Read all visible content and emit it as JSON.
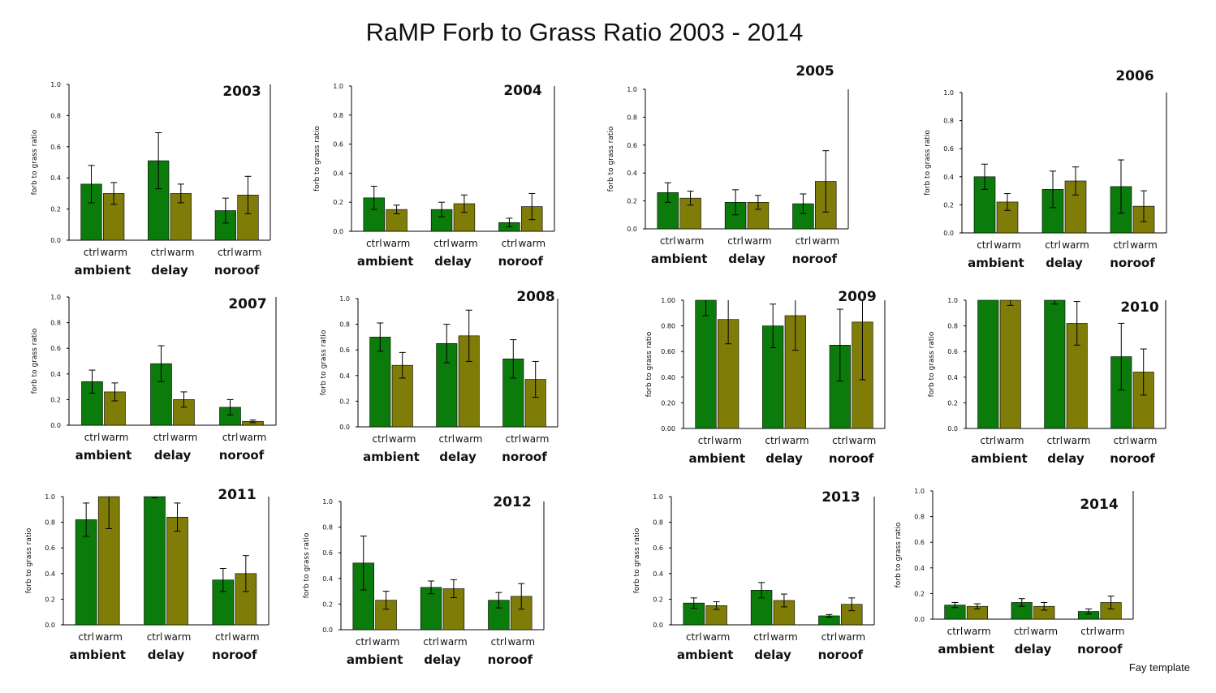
{
  "title": "RaMP Forb to Grass Ratio 2003 - 2014",
  "footer": "Fay template",
  "colors": {
    "ctrl": "#0b7b0b",
    "warm": "#7f7c08",
    "axis": "#000000"
  },
  "chart_data": [
    {
      "type": "bar",
      "title": "2003",
      "ylabel": "forb to grass ratio",
      "ylim": [
        0,
        1.0
      ],
      "yticks": [
        "0.0",
        "0.2",
        "0.4",
        "0.6",
        "0.8",
        "1.0"
      ],
      "groups": [
        "ambient",
        "delay",
        "noroof"
      ],
      "bar_labels": [
        "ctrl",
        "warm"
      ],
      "series": [
        {
          "name": "ctrl",
          "values": [
            0.36,
            0.51,
            0.19
          ],
          "errors": [
            0.12,
            0.18,
            0.08
          ]
        },
        {
          "name": "warm",
          "values": [
            0.3,
            0.3,
            0.29
          ],
          "errors": [
            0.07,
            0.06,
            0.12
          ]
        }
      ]
    },
    {
      "type": "bar",
      "title": "2004",
      "ylabel": "forb to grass ratio",
      "ylim": [
        0,
        1.0
      ],
      "yticks": [
        "0.0",
        "0.2",
        "0.4",
        "0.6",
        "0.8",
        "1.0"
      ],
      "groups": [
        "ambient",
        "delay",
        "noroof"
      ],
      "bar_labels": [
        "ctrl",
        "warm"
      ],
      "series": [
        {
          "name": "ctrl",
          "values": [
            0.23,
            0.15,
            0.06
          ],
          "errors": [
            0.08,
            0.05,
            0.03
          ]
        },
        {
          "name": "warm",
          "values": [
            0.15,
            0.19,
            0.17
          ],
          "errors": [
            0.03,
            0.06,
            0.09
          ]
        }
      ]
    },
    {
      "type": "bar",
      "title": "2005",
      "ylabel": "forb to grass ratio",
      "ylim": [
        0,
        1.0
      ],
      "yticks": [
        "0.0",
        "0.2",
        "0.4",
        "0.6",
        "0.8",
        "1.0"
      ],
      "groups": [
        "ambient",
        "delay",
        "noroof"
      ],
      "bar_labels": [
        "ctrl",
        "warm"
      ],
      "series": [
        {
          "name": "ctrl",
          "values": [
            0.26,
            0.19,
            0.18
          ],
          "errors": [
            0.07,
            0.09,
            0.07
          ]
        },
        {
          "name": "warm",
          "values": [
            0.22,
            0.19,
            0.34
          ],
          "errors": [
            0.05,
            0.05,
            0.22
          ]
        }
      ]
    },
    {
      "type": "bar",
      "title": "2006",
      "ylabel": "forb to grass ratio",
      "ylim": [
        0,
        1.0
      ],
      "yticks": [
        "0.0",
        "0.2",
        "0.4",
        "0.6",
        "0.8",
        "1.0"
      ],
      "groups": [
        "ambient",
        "delay",
        "noroof"
      ],
      "bar_labels": [
        "ctrl",
        "warm"
      ],
      "series": [
        {
          "name": "ctrl",
          "values": [
            0.4,
            0.31,
            0.33
          ],
          "errors": [
            0.09,
            0.13,
            0.19
          ]
        },
        {
          "name": "warm",
          "values": [
            0.22,
            0.37,
            0.19
          ],
          "errors": [
            0.06,
            0.1,
            0.11
          ]
        }
      ]
    },
    {
      "type": "bar",
      "title": "2007",
      "ylabel": "forb to grass ratio",
      "ylim": [
        0,
        1.0
      ],
      "yticks": [
        "0.0",
        "0.2",
        "0.4",
        "0.6",
        "0.8",
        "1.0"
      ],
      "groups": [
        "ambient",
        "delay",
        "noroof"
      ],
      "bar_labels": [
        "ctrl",
        "warm"
      ],
      "series": [
        {
          "name": "ctrl",
          "values": [
            0.34,
            0.48,
            0.14
          ],
          "errors": [
            0.09,
            0.14,
            0.06
          ]
        },
        {
          "name": "warm",
          "values": [
            0.26,
            0.2,
            0.03
          ],
          "errors": [
            0.07,
            0.06,
            0.01
          ]
        }
      ]
    },
    {
      "type": "bar",
      "title": "2008",
      "ylabel": "forb to grass ratio",
      "ylim": [
        0,
        1.0
      ],
      "yticks": [
        "0.0",
        "0.2",
        "0.4",
        "0.6",
        "0.8",
        "1.0"
      ],
      "groups": [
        "ambient",
        "delay",
        "noroof"
      ],
      "bar_labels": [
        "ctrl",
        "warm"
      ],
      "series": [
        {
          "name": "ctrl",
          "values": [
            0.7,
            0.65,
            0.53
          ],
          "errors": [
            0.11,
            0.15,
            0.15
          ]
        },
        {
          "name": "warm",
          "values": [
            0.48,
            0.71,
            0.37
          ],
          "errors": [
            0.1,
            0.2,
            0.14
          ]
        }
      ]
    },
    {
      "type": "bar",
      "title": "2009",
      "ylabel": "forb to grass ratio",
      "ylim": [
        0,
        1.0
      ],
      "yticks": [
        "0.00",
        "0.20",
        "0.40",
        "0.60",
        "0.80",
        "1.00"
      ],
      "groups": [
        "ambient",
        "delay",
        "noroof"
      ],
      "bar_labels": [
        "ctrl",
        "warm"
      ],
      "series": [
        {
          "name": "ctrl",
          "values": [
            1.0,
            0.8,
            0.65
          ],
          "errors": [
            0.12,
            0.17,
            0.28
          ]
        },
        {
          "name": "warm",
          "values": [
            0.85,
            0.88,
            0.83
          ],
          "errors": [
            0.19,
            0.27,
            0.45
          ]
        }
      ]
    },
    {
      "type": "bar",
      "title": "2010",
      "ylabel": "forb to grass ratio",
      "ylim": [
        0,
        1.0
      ],
      "yticks": [
        "0.0",
        "0.2",
        "0.4",
        "0.6",
        "0.8",
        "1.0"
      ],
      "groups": [
        "ambient",
        "delay",
        "noroof"
      ],
      "bar_labels": [
        "ctrl",
        "warm"
      ],
      "series": [
        {
          "name": "ctrl",
          "values": [
            1.0,
            1.0,
            0.56
          ],
          "errors": [
            0.0,
            0.03,
            0.26
          ]
        },
        {
          "name": "warm",
          "values": [
            1.0,
            0.82,
            0.44
          ],
          "errors": [
            0.04,
            0.17,
            0.18
          ]
        }
      ]
    },
    {
      "type": "bar",
      "title": "2011",
      "ylabel": "forb to grass ratio",
      "ylim": [
        0,
        1.0
      ],
      "yticks": [
        "0.0",
        "0.2",
        "0.4",
        "0.6",
        "0.8",
        "1.0"
      ],
      "groups": [
        "ambient",
        "delay",
        "noroof"
      ],
      "bar_labels": [
        "ctrl",
        "warm"
      ],
      "series": [
        {
          "name": "ctrl",
          "values": [
            0.82,
            1.0,
            0.35
          ],
          "errors": [
            0.13,
            0.01,
            0.09
          ]
        },
        {
          "name": "warm",
          "values": [
            1.0,
            0.84,
            0.4
          ],
          "errors": [
            0.25,
            0.11,
            0.14
          ]
        }
      ]
    },
    {
      "type": "bar",
      "title": "2012",
      "ylabel": "forb to grass ratio",
      "ylim": [
        0,
        1.0
      ],
      "yticks": [
        "0.0",
        "0.2",
        "0.4",
        "0.6",
        "0.8",
        "1.0"
      ],
      "groups": [
        "ambient",
        "delay",
        "noroof"
      ],
      "bar_labels": [
        "ctrl",
        "warm"
      ],
      "series": [
        {
          "name": "ctrl",
          "values": [
            0.52,
            0.33,
            0.23
          ],
          "errors": [
            0.21,
            0.05,
            0.06
          ]
        },
        {
          "name": "warm",
          "values": [
            0.23,
            0.32,
            0.26
          ],
          "errors": [
            0.07,
            0.07,
            0.1
          ]
        }
      ]
    },
    {
      "type": "bar",
      "title": "2013",
      "ylabel": "forb to grass ratio",
      "ylim": [
        0,
        1.0
      ],
      "yticks": [
        "0.0",
        "0.2",
        "0.4",
        "0.6",
        "0.8",
        "1.0"
      ],
      "groups": [
        "ambient",
        "delay",
        "noroof"
      ],
      "bar_labels": [
        "ctrl",
        "warm"
      ],
      "series": [
        {
          "name": "ctrl",
          "values": [
            0.17,
            0.27,
            0.07
          ],
          "errors": [
            0.04,
            0.06,
            0.01
          ]
        },
        {
          "name": "warm",
          "values": [
            0.15,
            0.19,
            0.16
          ],
          "errors": [
            0.03,
            0.05,
            0.05
          ]
        }
      ]
    },
    {
      "type": "bar",
      "title": "2014",
      "ylabel": "forb to grass ratio",
      "ylim": [
        0,
        1.0
      ],
      "yticks": [
        "0.0",
        "0.2",
        "0.4",
        "0.6",
        "0.8",
        "1.0"
      ],
      "groups": [
        "ambient",
        "delay",
        "noroof"
      ],
      "bar_labels": [
        "ctrl",
        "warm"
      ],
      "series": [
        {
          "name": "ctrl",
          "values": [
            0.11,
            0.13,
            0.06
          ],
          "errors": [
            0.02,
            0.03,
            0.02
          ]
        },
        {
          "name": "warm",
          "values": [
            0.1,
            0.1,
            0.13
          ],
          "errors": [
            0.02,
            0.03,
            0.05
          ]
        }
      ]
    }
  ]
}
